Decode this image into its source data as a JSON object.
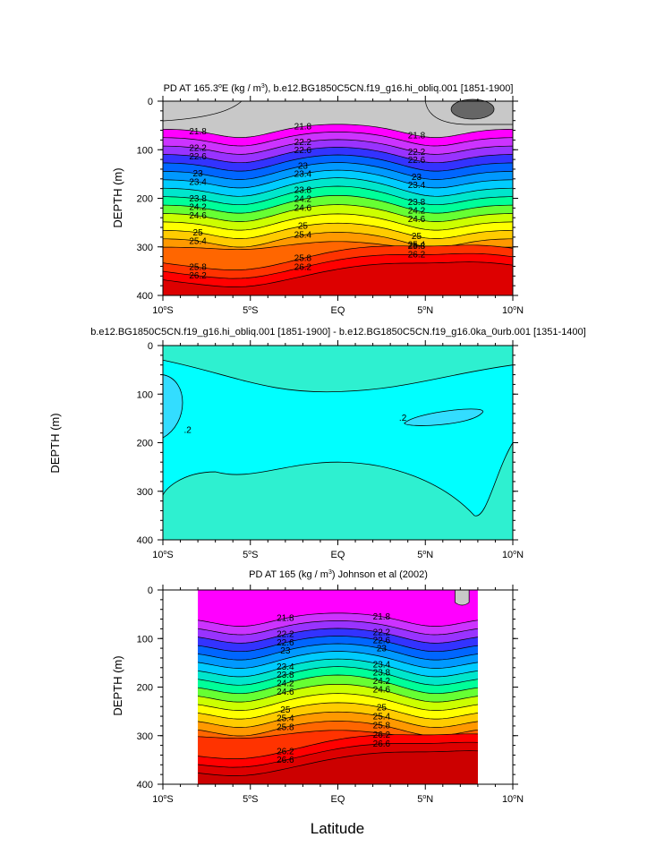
{
  "chart_data": [
    {
      "type": "contour",
      "title": "PD AT 165.3°E (kg / m³), b.e12.BG1850C5CN.f19_g16.hi_obliq.001 [1851-1900]",
      "title_parts": [
        "PD AT 165.3",
        "o",
        "E (kg / m",
        "3",
        "), b.e12.BG1850C5CN.f19_g16.hi_obliq.001 [1851-1900]"
      ],
      "ylabel": "DEPTH (m)",
      "ylim": [
        0,
        400
      ],
      "xlim": [
        -10,
        10
      ],
      "x_ticks": [
        "10°S",
        "5°S",
        "EQ",
        "5°N",
        "10°N"
      ],
      "y_ticks": [
        "0",
        "100",
        "200",
        "300",
        "400"
      ],
      "contour_labels": [
        "21.8",
        "22.2",
        "22.6",
        "23",
        "23.4",
        "23.8",
        "24.2",
        "24.6",
        "25",
        "25.4",
        "25.8",
        "26.2"
      ],
      "contour_interval": 0.2,
      "data_extent_lat": [
        -10,
        10
      ]
    },
    {
      "type": "contour",
      "title": "b.e12.BG1850C5CN.f19_g16.hi_obliq.001 [1851-1900] - b.e12.BG1850C5CN.f19_g16.0ka_0urb.001 [1351-1400]",
      "ylabel": "DEPTH (m)",
      "ylim": [
        0,
        400
      ],
      "xlim": [
        -10,
        10
      ],
      "x_ticks": [
        "10°S",
        "5°S",
        "EQ",
        "5°N",
        "10°N"
      ],
      "y_ticks": [
        "0",
        "100",
        "200",
        "300",
        "400"
      ],
      "contour_labels": [
        ".2",
        ".2"
      ]
    },
    {
      "type": "contour",
      "title": "PD AT 165 (kg / m³) Johnson et al (2002)",
      "title_parts": [
        "PD AT 165 (kg / m",
        "3",
        ") Johnson et al (2002)"
      ],
      "ylabel": "DEPTH (m)",
      "xlabel": "Latitude",
      "ylim": [
        0,
        400
      ],
      "xlim": [
        -10,
        10
      ],
      "x_ticks": [
        "10°S",
        "5°S",
        "EQ",
        "5°N",
        "10°N"
      ],
      "y_ticks": [
        "0",
        "100",
        "200",
        "300",
        "400"
      ],
      "contour_labels": [
        "21.8",
        "22.2",
        "22.6",
        "23",
        "23.4",
        "23.8",
        "24.2",
        "24.6",
        "25",
        "25.4",
        "25.8",
        "26.2",
        "26.6"
      ],
      "data_extent_lat": [
        -8,
        8
      ]
    }
  ],
  "palette": [
    "#c8c8c8",
    "#ff00ff",
    "#cc33ff",
    "#9933ff",
    "#3333ff",
    "#0066ff",
    "#0099ff",
    "#00ccff",
    "#00e6cc",
    "#00ff99",
    "#66ff33",
    "#ccff00",
    "#ffff00",
    "#ffcc00",
    "#ff9900",
    "#ff6600",
    "#ff3300",
    "#ff0000",
    "#dd0000"
  ],
  "diff_colors": [
    "#00ffff",
    "#33ddff",
    "#2ef0d0"
  ]
}
